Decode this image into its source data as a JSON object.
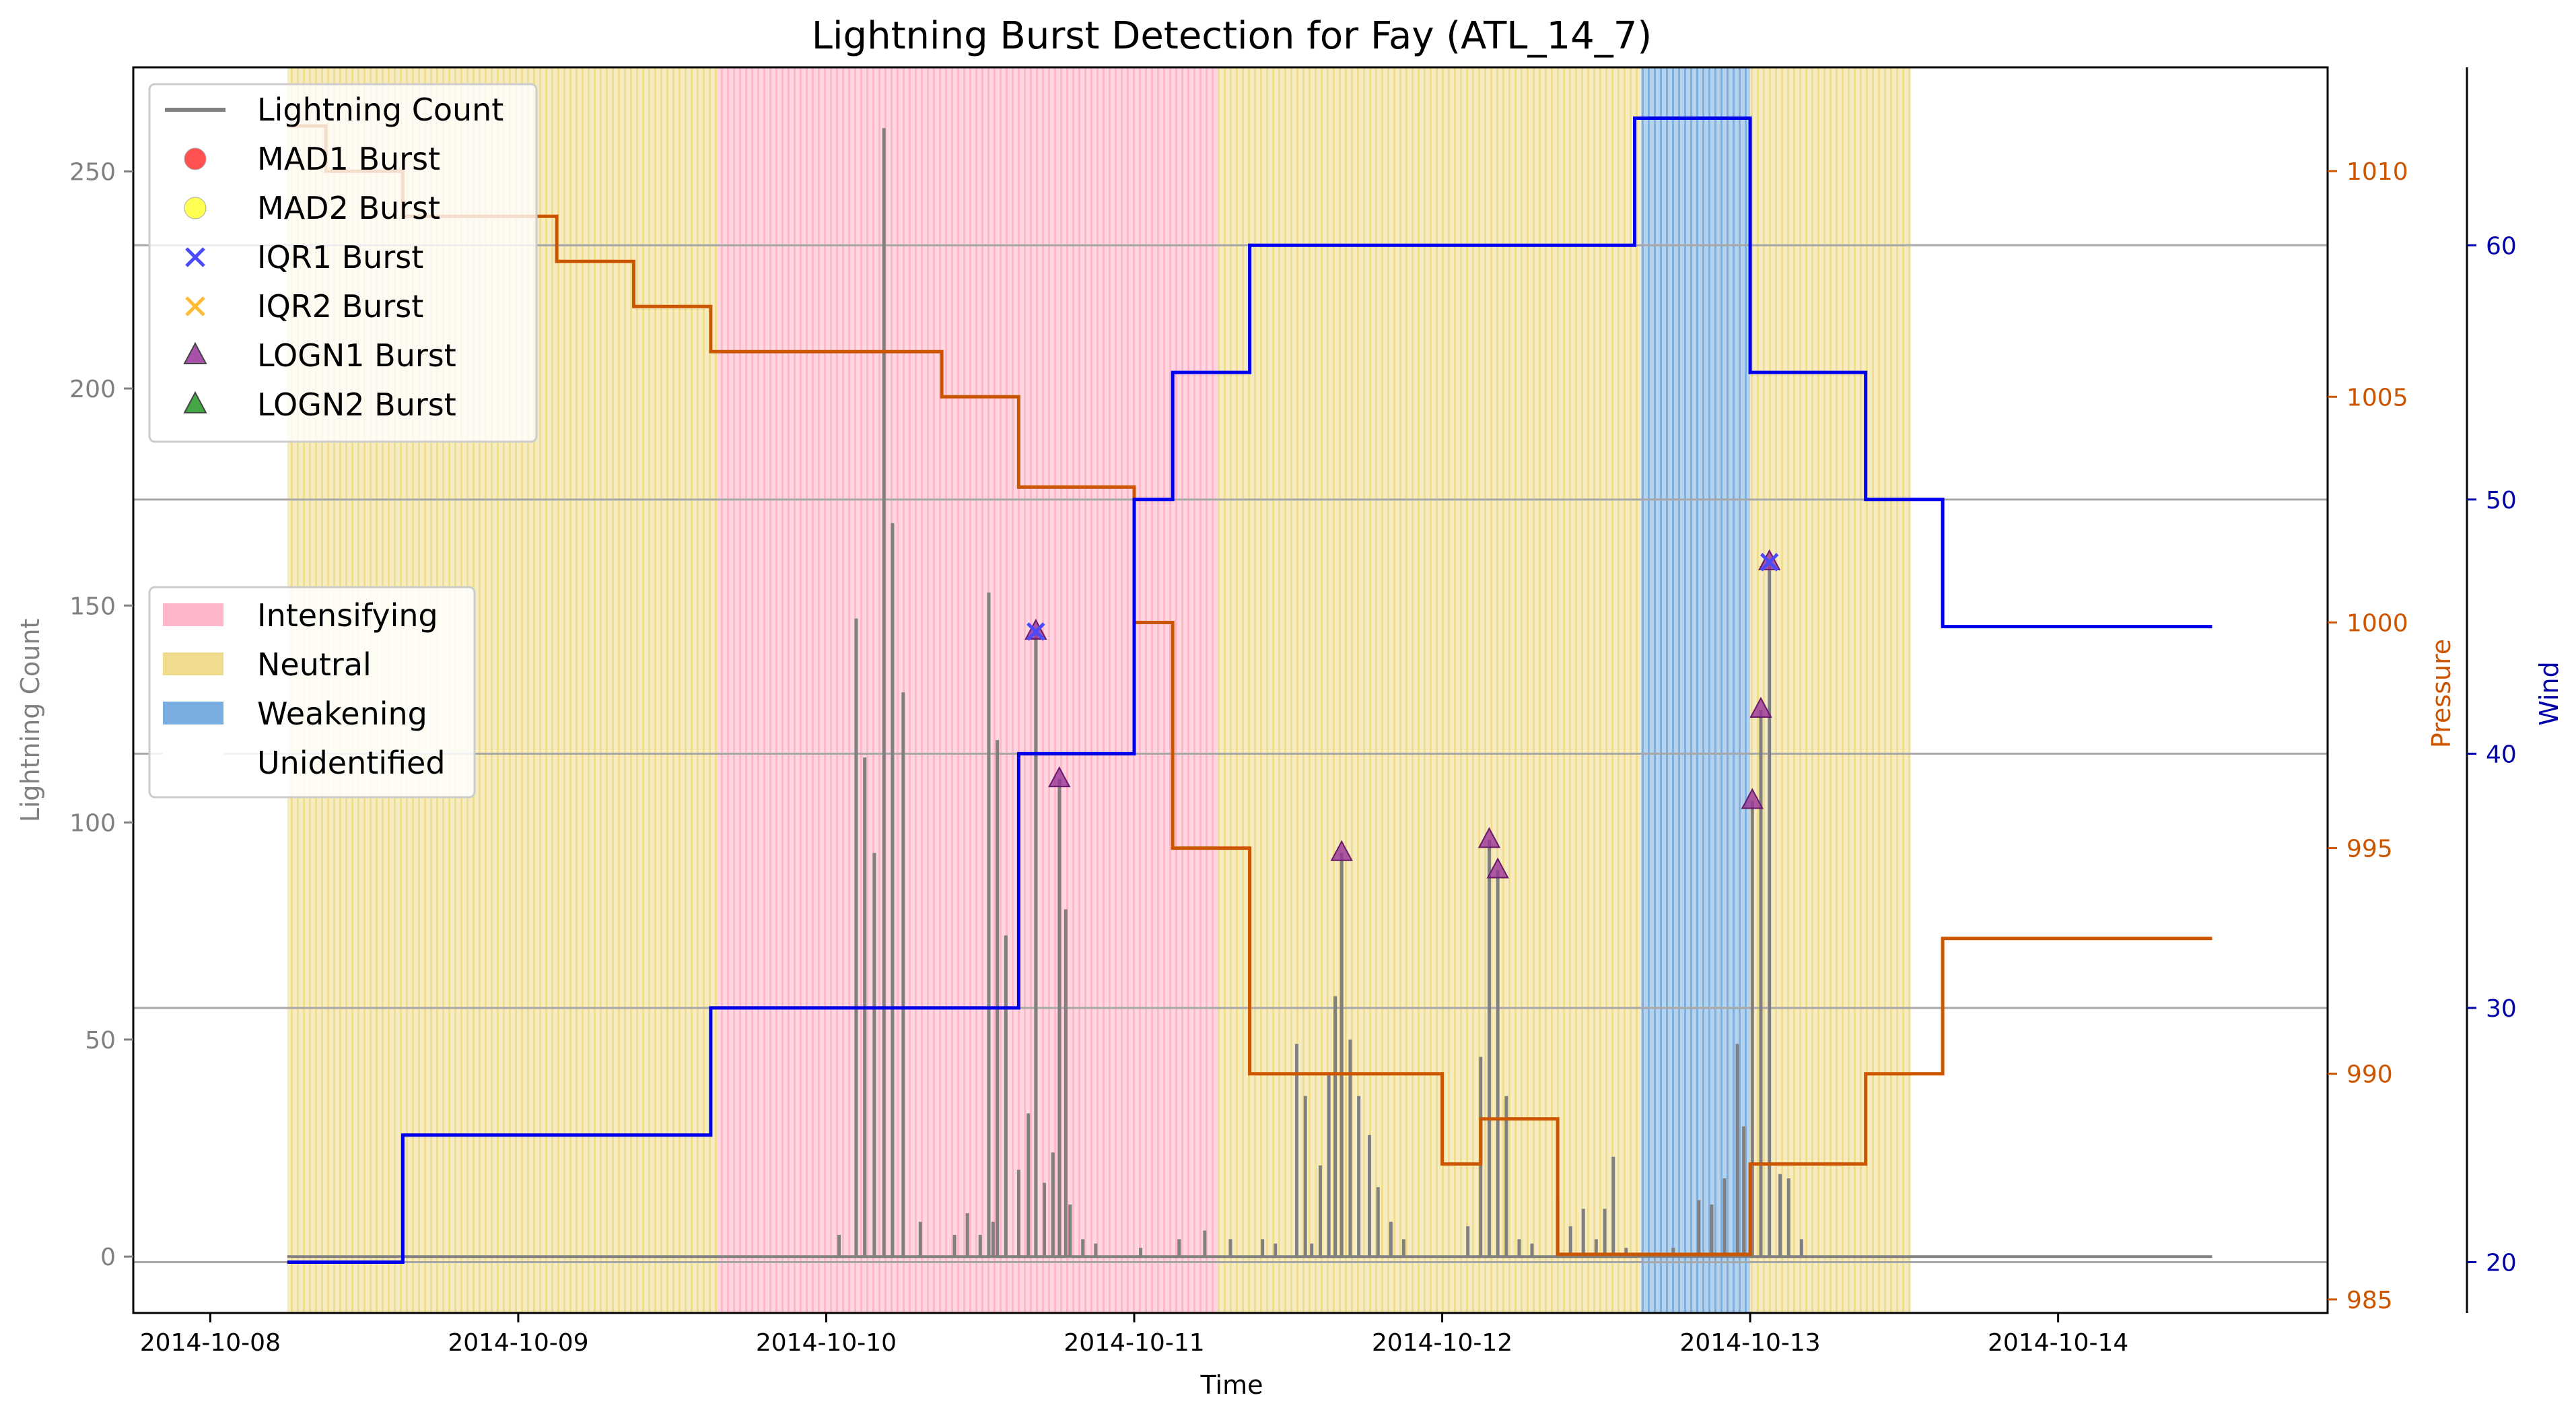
{
  "chart_data": {
    "type": "line",
    "title": "Lightning Burst Detection for Fay (ATL_14_7)",
    "xlabel": "Time",
    "ylabel_left": "Lightning Count",
    "ylabel_pressure": "Pressure",
    "ylabel_wind": "Wind",
    "x_ticks": [
      "2014-10-08",
      "2014-10-09",
      "2014-10-10",
      "2014-10-11",
      "2014-10-12",
      "2014-10-13",
      "2014-10-14"
    ],
    "xlim": [
      "2014-10-07T18:00",
      "2014-10-14T21:00"
    ],
    "ylim_lightning": [
      -13,
      274
    ],
    "yticks_lightning": [
      0,
      50,
      100,
      150,
      200,
      250
    ],
    "ylim_pressure": [
      984.7,
      1012.3
    ],
    "yticks_pressure": [
      985,
      990,
      995,
      1000,
      1005,
      1010
    ],
    "ylim_wind": [
      18,
      67
    ],
    "yticks_wind": [
      20,
      30,
      40,
      50,
      60
    ],
    "grid": "horizontal lines at wind ticks",
    "colors": {
      "lightning": "#808080",
      "pressure": "#cc5500",
      "wind": "#0000ee",
      "intensifying": "#ffb6c8",
      "neutral": "#efdc8c",
      "weakening": "#7aaee0",
      "logn1": "#993399",
      "iqr1": "#4a4aff"
    },
    "phases": [
      {
        "label": "Neutral",
        "start": "2014-10-08T06:00",
        "end": "2014-10-09T15:30"
      },
      {
        "label": "Intensifying",
        "start": "2014-10-09T15:30",
        "end": "2014-10-11T06:30"
      },
      {
        "label": "Neutral",
        "start": "2014-10-11T06:30",
        "end": "2014-10-12T15:30"
      },
      {
        "label": "Weakening",
        "start": "2014-10-12T15:30",
        "end": "2014-10-13T00:00"
      },
      {
        "label": "Neutral",
        "start": "2014-10-13T00:00",
        "end": "2014-10-13T12:30"
      }
    ],
    "pressure": [
      [
        "2014-10-08T06:00",
        1011
      ],
      [
        "2014-10-08T09:00",
        1011
      ],
      [
        "2014-10-08T09:00",
        1010
      ],
      [
        "2014-10-08T15:00",
        1010
      ],
      [
        "2014-10-08T15:00",
        1009
      ],
      [
        "2014-10-09T03:00",
        1009
      ],
      [
        "2014-10-09T03:00",
        1008
      ],
      [
        "2014-10-09T09:00",
        1008
      ],
      [
        "2014-10-09T09:00",
        1007
      ],
      [
        "2014-10-09T15:00",
        1007
      ],
      [
        "2014-10-09T15:00",
        1006
      ],
      [
        "2014-10-10T09:00",
        1006
      ],
      [
        "2014-10-10T09:00",
        1005
      ],
      [
        "2014-10-10T15:00",
        1005
      ],
      [
        "2014-10-10T15:00",
        1003
      ],
      [
        "2014-10-11T00:00",
        1003
      ],
      [
        "2014-10-11T00:00",
        1000
      ],
      [
        "2014-10-11T03:00",
        1000
      ],
      [
        "2014-10-11T03:00",
        995
      ],
      [
        "2014-10-11T09:00",
        995
      ],
      [
        "2014-10-11T09:00",
        990
      ],
      [
        "2014-10-12T00:00",
        990
      ],
      [
        "2014-10-12T00:00",
        988
      ],
      [
        "2014-10-12T03:00",
        988
      ],
      [
        "2014-10-12T03:00",
        989
      ],
      [
        "2014-10-12T09:00",
        989
      ],
      [
        "2014-10-12T09:00",
        986
      ],
      [
        "2014-10-13T00:00",
        986
      ],
      [
        "2014-10-13T00:00",
        988
      ],
      [
        "2014-10-13T09:00",
        988
      ],
      [
        "2014-10-13T09:00",
        990
      ],
      [
        "2014-10-13T15:00",
        990
      ],
      [
        "2014-10-13T15:00",
        993
      ],
      [
        "2014-10-14T12:00",
        993
      ]
    ],
    "wind": [
      [
        "2014-10-08T06:00",
        20
      ],
      [
        "2014-10-08T15:00",
        20
      ],
      [
        "2014-10-08T15:00",
        25
      ],
      [
        "2014-10-09T15:00",
        25
      ],
      [
        "2014-10-09T15:00",
        30
      ],
      [
        "2014-10-10T15:00",
        30
      ],
      [
        "2014-10-10T15:00",
        40
      ],
      [
        "2014-10-11T00:00",
        40
      ],
      [
        "2014-10-11T00:00",
        50
      ],
      [
        "2014-10-11T03:00",
        50
      ],
      [
        "2014-10-11T03:00",
        55
      ],
      [
        "2014-10-11T09:00",
        55
      ],
      [
        "2014-10-11T09:00",
        60
      ],
      [
        "2014-10-12T15:00",
        60
      ],
      [
        "2014-10-12T15:00",
        65
      ],
      [
        "2014-10-13T00:00",
        65
      ],
      [
        "2014-10-13T00:00",
        55
      ],
      [
        "2014-10-13T09:00",
        55
      ],
      [
        "2014-10-13T09:00",
        50
      ],
      [
        "2014-10-13T15:00",
        50
      ],
      [
        "2014-10-13T15:00",
        45
      ],
      [
        "2014-10-14T12:00",
        45
      ]
    ],
    "lightning_spikes": [
      [
        "2014-10-10T02:20",
        147
      ],
      [
        "2014-10-10T03:00",
        115
      ],
      [
        "2014-10-10T03:45",
        93
      ],
      [
        "2014-10-10T04:30",
        260
      ],
      [
        "2014-10-10T05:10",
        169
      ],
      [
        "2014-10-10T06:00",
        130
      ],
      [
        "2014-10-10T01:00",
        5
      ],
      [
        "2014-10-10T07:20",
        8
      ],
      [
        "2014-10-10T10:00",
        5
      ],
      [
        "2014-10-10T11:00",
        10
      ],
      [
        "2014-10-10T12:00",
        5
      ],
      [
        "2014-10-10T13:00",
        8
      ],
      [
        "2014-10-10T12:40",
        153
      ],
      [
        "2014-10-10T13:20",
        119
      ],
      [
        "2014-10-10T14:00",
        74
      ],
      [
        "2014-10-10T15:00",
        20
      ],
      [
        "2014-10-10T15:45",
        33
      ],
      [
        "2014-10-10T16:20",
        144
      ],
      [
        "2014-10-10T17:00",
        17
      ],
      [
        "2014-10-10T17:40",
        24
      ],
      [
        "2014-10-10T18:10",
        110
      ],
      [
        "2014-10-10T18:40",
        80
      ],
      [
        "2014-10-10T19:00",
        12
      ],
      [
        "2014-10-10T20:00",
        4
      ],
      [
        "2014-10-10T21:00",
        3
      ],
      [
        "2014-10-11T00:30",
        2
      ],
      [
        "2014-10-11T03:30",
        4
      ],
      [
        "2014-10-11T05:30",
        6
      ],
      [
        "2014-10-11T07:30",
        4
      ],
      [
        "2014-10-11T10:00",
        4
      ],
      [
        "2014-10-11T11:00",
        3
      ],
      [
        "2014-10-11T12:40",
        49
      ],
      [
        "2014-10-11T13:20",
        37
      ],
      [
        "2014-10-11T13:50",
        3
      ],
      [
        "2014-10-11T14:30",
        21
      ],
      [
        "2014-10-11T15:10",
        42
      ],
      [
        "2014-10-11T15:40",
        60
      ],
      [
        "2014-10-11T16:10",
        93
      ],
      [
        "2014-10-11T16:50",
        50
      ],
      [
        "2014-10-11T17:30",
        37
      ],
      [
        "2014-10-11T18:20",
        28
      ],
      [
        "2014-10-11T19:00",
        16
      ],
      [
        "2014-10-11T20:00",
        8
      ],
      [
        "2014-10-11T21:00",
        4
      ],
      [
        "2014-10-12T02:00",
        7
      ],
      [
        "2014-10-12T03:00",
        46
      ],
      [
        "2014-10-12T03:40",
        96
      ],
      [
        "2014-10-12T04:20",
        89
      ],
      [
        "2014-10-12T05:00",
        37
      ],
      [
        "2014-10-12T06:00",
        4
      ],
      [
        "2014-10-12T07:00",
        3
      ],
      [
        "2014-10-12T09:00",
        13
      ],
      [
        "2014-10-12T10:00",
        7
      ],
      [
        "2014-10-12T11:00",
        11
      ],
      [
        "2014-10-12T12:00",
        4
      ],
      [
        "2014-10-12T12:40",
        11
      ],
      [
        "2014-10-12T13:20",
        23
      ],
      [
        "2014-10-12T14:20",
        2
      ],
      [
        "2014-10-12T18:00",
        2
      ],
      [
        "2014-10-12T20:00",
        13
      ],
      [
        "2014-10-12T21:00",
        12
      ],
      [
        "2014-10-12T22:00",
        18
      ],
      [
        "2014-10-12T23:00",
        49
      ],
      [
        "2014-10-12T23:30",
        30
      ],
      [
        "2014-10-13T00:10",
        105
      ],
      [
        "2014-10-13T00:50",
        126
      ],
      [
        "2014-10-13T01:30",
        160
      ],
      [
        "2014-10-13T02:20",
        19
      ],
      [
        "2014-10-13T03:00",
        18
      ],
      [
        "2014-10-13T04:00",
        4
      ]
    ],
    "bursts": [
      {
        "type": "LOGN1",
        "x": "2014-10-10T16:20",
        "y": 144
      },
      {
        "type": "IQR1",
        "x": "2014-10-10T16:20",
        "y": 144
      },
      {
        "type": "LOGN1",
        "x": "2014-10-10T18:10",
        "y": 110
      },
      {
        "type": "LOGN1",
        "x": "2014-10-11T16:10",
        "y": 93
      },
      {
        "type": "LOGN1",
        "x": "2014-10-12T03:40",
        "y": 96
      },
      {
        "type": "LOGN1",
        "x": "2014-10-12T04:20",
        "y": 89
      },
      {
        "type": "LOGN1",
        "x": "2014-10-13T00:10",
        "y": 105
      },
      {
        "type": "LOGN1",
        "x": "2014-10-13T00:50",
        "y": 126
      },
      {
        "type": "LOGN1",
        "x": "2014-10-13T01:30",
        "y": 160
      },
      {
        "type": "IQR1",
        "x": "2014-10-13T01:30",
        "y": 160
      }
    ],
    "legend_series": {
      "placement": "upper-left",
      "entries": [
        {
          "label": "Lightning Count",
          "marker": "line",
          "color": "#808080"
        },
        {
          "label": "MAD1 Burst",
          "marker": "circle",
          "color": "#ff3333"
        },
        {
          "label": "MAD2 Burst",
          "marker": "circle",
          "color": "#ffff33"
        },
        {
          "label": "IQR1 Burst",
          "marker": "x",
          "color": "#4a4aff"
        },
        {
          "label": "IQR2 Burst",
          "marker": "x",
          "color": "#ffbb33"
        },
        {
          "label": "LOGN1 Burst",
          "marker": "triangle",
          "color": "#993399"
        },
        {
          "label": "LOGN2 Burst",
          "marker": "triangle",
          "color": "#229922"
        }
      ]
    },
    "legend_phase": {
      "placement": "center-left",
      "entries": [
        {
          "label": "Intensifying",
          "color": "#ffb6c8"
        },
        {
          "label": "Neutral",
          "color": "#efdc8c"
        },
        {
          "label": "Weakening",
          "color": "#7aaee0"
        },
        {
          "label": "Unidentified",
          "color": "#ffffff"
        }
      ]
    }
  }
}
